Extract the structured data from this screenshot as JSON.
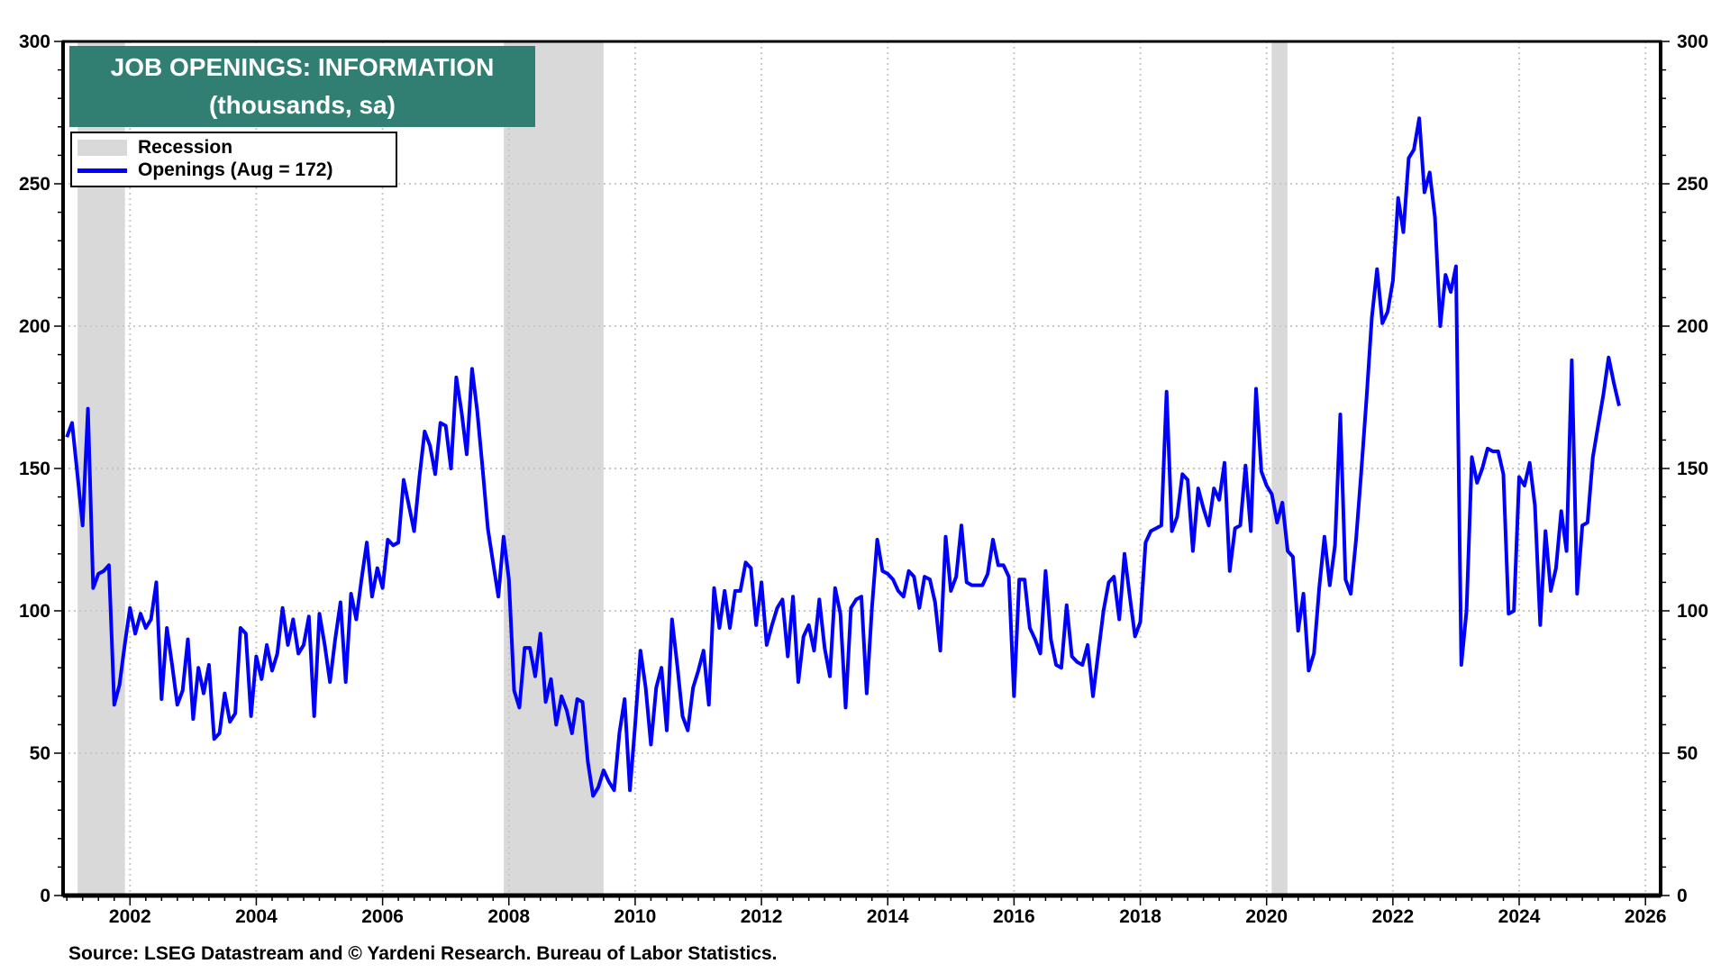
{
  "chart_data": {
    "type": "line",
    "title": "JOB OPENINGS: INFORMATION",
    "subtitle": "(thousands, sa)",
    "xlabel": "",
    "ylabel": "",
    "ylim": [
      0,
      300
    ],
    "xlim": [
      2000.94,
      2026.24
    ],
    "y_ticks": [
      "0",
      "50",
      "100",
      "150",
      "200",
      "250",
      "300"
    ],
    "x_ticks": [
      "2002",
      "2004",
      "2006",
      "2008",
      "2010",
      "2012",
      "2014",
      "2016",
      "2018",
      "2020",
      "2022",
      "2024",
      "2026"
    ],
    "grid": true,
    "legend_position": "top-left",
    "legend": {
      "recession": "Recession",
      "series": "Openings (Aug = 172)"
    },
    "recessions": [
      [
        2001.17,
        2001.92
      ],
      [
        2007.92,
        2009.5
      ],
      [
        2020.08,
        2020.33
      ]
    ],
    "series": [
      {
        "name": "Openings",
        "color": "#0000ff",
        "start": "2001-01",
        "frequency": "monthly",
        "values": [
          161,
          166,
          148,
          130,
          171,
          108,
          113,
          114,
          116,
          67,
          74,
          88,
          101,
          92,
          99,
          94,
          97,
          110,
          69,
          94,
          81,
          67,
          72,
          90,
          62,
          80,
          71,
          81,
          55,
          57,
          71,
          61,
          64,
          94,
          92,
          63,
          84,
          76,
          88,
          79,
          85,
          101,
          88,
          97,
          85,
          88,
          98,
          63,
          99,
          88,
          75,
          90,
          103,
          75,
          106,
          97,
          111,
          124,
          105,
          115,
          108,
          125,
          123,
          124,
          146,
          137,
          128,
          147,
          163,
          158,
          148,
          166,
          165,
          150,
          182,
          170,
          155,
          185,
          170,
          150,
          129,
          117,
          105,
          126,
          111,
          72,
          66,
          87,
          87,
          77,
          92,
          68,
          76,
          60,
          70,
          65,
          57,
          69,
          68,
          47,
          35,
          38,
          44,
          40,
          37,
          57,
          69,
          37,
          60,
          86,
          73,
          53,
          73,
          80,
          58,
          97,
          81,
          63,
          58,
          73,
          79,
          86,
          67,
          108,
          94,
          107,
          94,
          107,
          107,
          117,
          115,
          95,
          110,
          88,
          95,
          101,
          104,
          84,
          105,
          75,
          91,
          95,
          86,
          104,
          87,
          77,
          108,
          99,
          66,
          101,
          104,
          105,
          71,
          101,
          125,
          114,
          113,
          111,
          107,
          105,
          114,
          112,
          101,
          112,
          111,
          103,
          86,
          126,
          107,
          112,
          130,
          110,
          109,
          109,
          109,
          113,
          125,
          116,
          116,
          112,
          70,
          111,
          111,
          94,
          90,
          85,
          114,
          90,
          81,
          80,
          102,
          84,
          82,
          81,
          88,
          70,
          85,
          100,
          110,
          112,
          97,
          120,
          105,
          91,
          96,
          124,
          128,
          129,
          130,
          177,
          128,
          133,
          148,
          146,
          121,
          143,
          136,
          130,
          143,
          139,
          152,
          114,
          129,
          130,
          151,
          128,
          178,
          149,
          144,
          141,
          131,
          138,
          121,
          119,
          93,
          106,
          79,
          85,
          108,
          126,
          109,
          123,
          169,
          111,
          106,
          125,
          149,
          175,
          203,
          220,
          201,
          205,
          216,
          245,
          233,
          259,
          262,
          273,
          247,
          254,
          238,
          200,
          218,
          212,
          221,
          81,
          100,
          154,
          145,
          150,
          157,
          156,
          156,
          148,
          99,
          100,
          147,
          144,
          152,
          137,
          95,
          128,
          107,
          115,
          135,
          121,
          188,
          106,
          130,
          131,
          154,
          165,
          176,
          189,
          180,
          172
        ]
      }
    ]
  },
  "source": "Source: LSEG Datastream and © Yardeni Research. Bureau of Labor Statistics."
}
